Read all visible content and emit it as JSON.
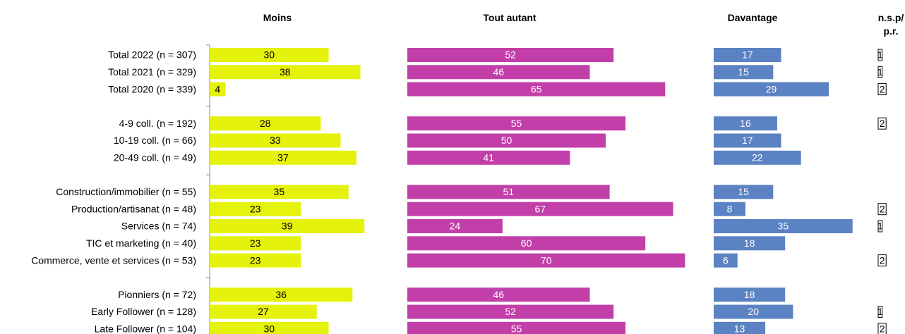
{
  "chart_data": {
    "type": "bar",
    "orientation": "horizontal",
    "categories": [
      "Total 2022 (n = 307)",
      "Total 2021 (n = 329)",
      "Total 2020 (n = 339)",
      null,
      "4-9 coll. (n = 192)",
      "10-19 coll. (n = 66)",
      "20-49 coll. (n = 49)",
      null,
      "Construction/immobilier (n = 55)",
      "Production/artisanat (n = 48)",
      "Services (n = 74)",
      "TIC et marketing (n = 40)",
      "Commerce, vente et services (n = 53)",
      null,
      "Pionniers (n = 72)",
      "Early Follower (n = 128)",
      "Late Follower (n = 104)"
    ],
    "series": [
      {
        "name": "Moins",
        "color": "#e4f20c",
        "label_color": "#000000",
        "values": [
          30,
          38,
          4,
          null,
          28,
          33,
          37,
          null,
          35,
          23,
          39,
          23,
          23,
          null,
          36,
          27,
          30
        ]
      },
      {
        "name": "Tout autant",
        "color": "#c23fa9",
        "label_color": "#ffffff",
        "values": [
          52,
          46,
          65,
          null,
          55,
          50,
          41,
          null,
          51,
          67,
          24,
          60,
          70,
          null,
          46,
          52,
          55
        ]
      },
      {
        "name": "Davantage",
        "color": "#5b82c2",
        "label_color": "#ffffff",
        "values": [
          17,
          15,
          29,
          null,
          16,
          17,
          22,
          null,
          15,
          8,
          35,
          18,
          6,
          null,
          18,
          20,
          13
        ]
      },
      {
        "name": "n.s.p/ p.r.",
        "color": "#ffffff",
        "label_color": "#000000",
        "values": [
          1,
          1,
          2,
          null,
          2,
          null,
          null,
          null,
          null,
          2,
          1,
          null,
          2,
          null,
          null,
          1,
          2
        ]
      }
    ]
  }
}
